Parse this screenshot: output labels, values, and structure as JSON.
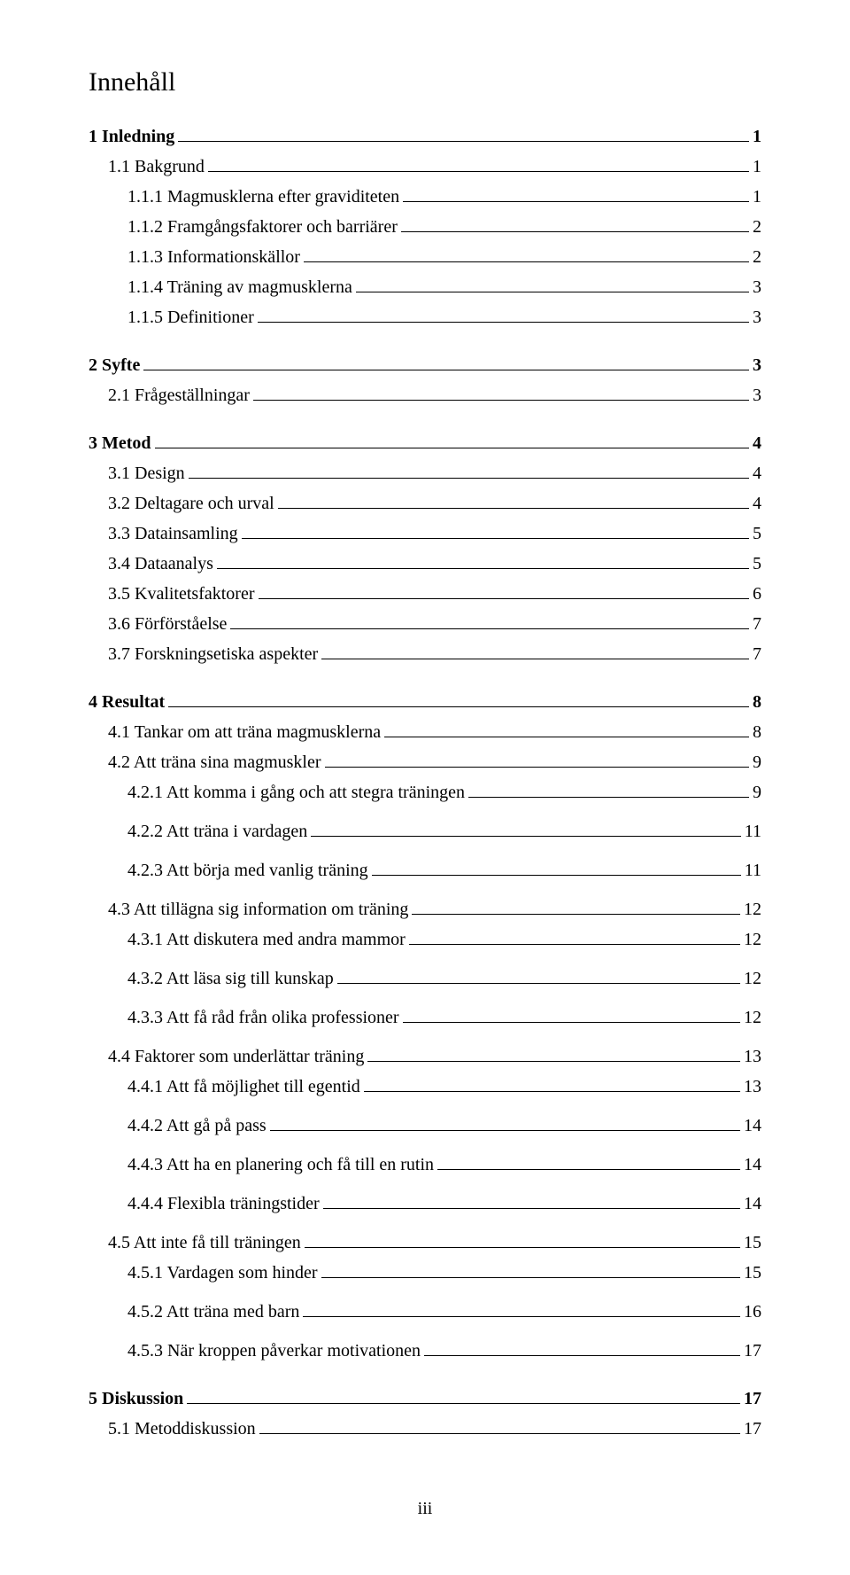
{
  "title": "Innehåll",
  "pageNumber": "iii",
  "entries": [
    {
      "label": "1 Inledning",
      "page": "1",
      "level": 1,
      "bold": true,
      "gap": "big"
    },
    {
      "label": "1.1 Bakgrund",
      "page": "1",
      "level": 2,
      "bold": false,
      "gap": "none"
    },
    {
      "label": "1.1.1 Magmusklerna efter graviditeten",
      "page": "1",
      "level": 3,
      "bold": false,
      "gap": "none"
    },
    {
      "label": "1.1.2 Framgångsfaktorer och barriärer",
      "page": "2",
      "level": 3,
      "bold": false,
      "gap": "none"
    },
    {
      "label": "1.1.3 Informationskällor",
      "page": "2",
      "level": 3,
      "bold": false,
      "gap": "none"
    },
    {
      "label": "1.1.4 Träning av magmusklerna",
      "page": "3",
      "level": 3,
      "bold": false,
      "gap": "none"
    },
    {
      "label": "1.1.5 Definitioner",
      "page": "3",
      "level": 3,
      "bold": false,
      "gap": "none"
    },
    {
      "label": "2 Syfte",
      "page": "3",
      "level": 1,
      "bold": true,
      "gap": "big"
    },
    {
      "label": "2.1 Frågeställningar",
      "page": "3",
      "level": 2,
      "bold": false,
      "gap": "none"
    },
    {
      "label": "3 Metod",
      "page": "4",
      "level": 1,
      "bold": true,
      "gap": "big"
    },
    {
      "label": "3.1 Design",
      "page": "4",
      "level": 2,
      "bold": false,
      "gap": "none"
    },
    {
      "label": "3.2 Deltagare och urval",
      "page": "4",
      "level": 2,
      "bold": false,
      "gap": "none"
    },
    {
      "label": "3.3 Datainsamling",
      "page": "5",
      "level": 2,
      "bold": false,
      "gap": "none"
    },
    {
      "label": "3.4 Dataanalys",
      "page": "5",
      "level": 2,
      "bold": false,
      "gap": "none"
    },
    {
      "label": "3.5 Kvalitetsfaktorer",
      "page": "6",
      "level": 2,
      "bold": false,
      "gap": "none"
    },
    {
      "label": "3.6 Förförståelse",
      "page": "7",
      "level": 2,
      "bold": false,
      "gap": "none"
    },
    {
      "label": "3.7 Forskningsetiska aspekter",
      "page": "7",
      "level": 2,
      "bold": false,
      "gap": "none"
    },
    {
      "label": "4 Resultat",
      "page": "8",
      "level": 1,
      "bold": true,
      "gap": "big"
    },
    {
      "label": "4.1 Tankar om att träna magmusklerna",
      "page": "8",
      "level": 2,
      "bold": false,
      "gap": "none"
    },
    {
      "label": "4.2 Att träna sina magmuskler",
      "page": "9",
      "level": 2,
      "bold": false,
      "gap": "none"
    },
    {
      "label": "4.2.1 Att komma i gång och att stegra träningen",
      "page": "9",
      "level": 3,
      "bold": false,
      "gap": "none"
    },
    {
      "label": "4.2.2 Att träna i vardagen",
      "page": "11",
      "level": 3,
      "bold": false,
      "gap": "small"
    },
    {
      "label": "4.2.3 Att börja med vanlig träning",
      "page": "11",
      "level": 3,
      "bold": false,
      "gap": "small"
    },
    {
      "label": "4.3 Att tillägna sig information om träning",
      "page": "12",
      "level": 2,
      "bold": false,
      "gap": "small"
    },
    {
      "label": "4.3.1 Att diskutera med andra mammor",
      "page": "12",
      "level": 3,
      "bold": false,
      "gap": "none"
    },
    {
      "label": "4.3.2 Att läsa sig till kunskap",
      "page": "12",
      "level": 3,
      "bold": false,
      "gap": "small"
    },
    {
      "label": "4.3.3 Att få råd från olika professioner",
      "page": "12",
      "level": 3,
      "bold": false,
      "gap": "small"
    },
    {
      "label": "4.4 Faktorer som underlättar träning",
      "page": "13",
      "level": 2,
      "bold": false,
      "gap": "small"
    },
    {
      "label": "4.4.1 Att få möjlighet till egentid",
      "page": "13",
      "level": 3,
      "bold": false,
      "gap": "none"
    },
    {
      "label": "4.4.2 Att gå på pass",
      "page": "14",
      "level": 3,
      "bold": false,
      "gap": "small"
    },
    {
      "label": "4.4.3 Att ha en planering och få till en rutin",
      "page": "14",
      "level": 3,
      "bold": false,
      "gap": "small"
    },
    {
      "label": "4.4.4 Flexibla träningstider",
      "page": "14",
      "level": 3,
      "bold": false,
      "gap": "small"
    },
    {
      "label": "4.5 Att inte få till träningen",
      "page": "15",
      "level": 2,
      "bold": false,
      "gap": "small"
    },
    {
      "label": "4.5.1 Vardagen som hinder",
      "page": "15",
      "level": 3,
      "bold": false,
      "gap": "none"
    },
    {
      "label": "4.5.2 Att träna med barn",
      "page": "16",
      "level": 3,
      "bold": false,
      "gap": "small"
    },
    {
      "label": "4.5.3 När kroppen påverkar motivationen",
      "page": "17",
      "level": 3,
      "bold": false,
      "gap": "small"
    },
    {
      "label": "5 Diskussion",
      "page": "17",
      "level": 1,
      "bold": true,
      "gap": "big"
    },
    {
      "label": "5.1 Metoddiskussion",
      "page": "17",
      "level": 2,
      "bold": false,
      "gap": "none"
    }
  ]
}
